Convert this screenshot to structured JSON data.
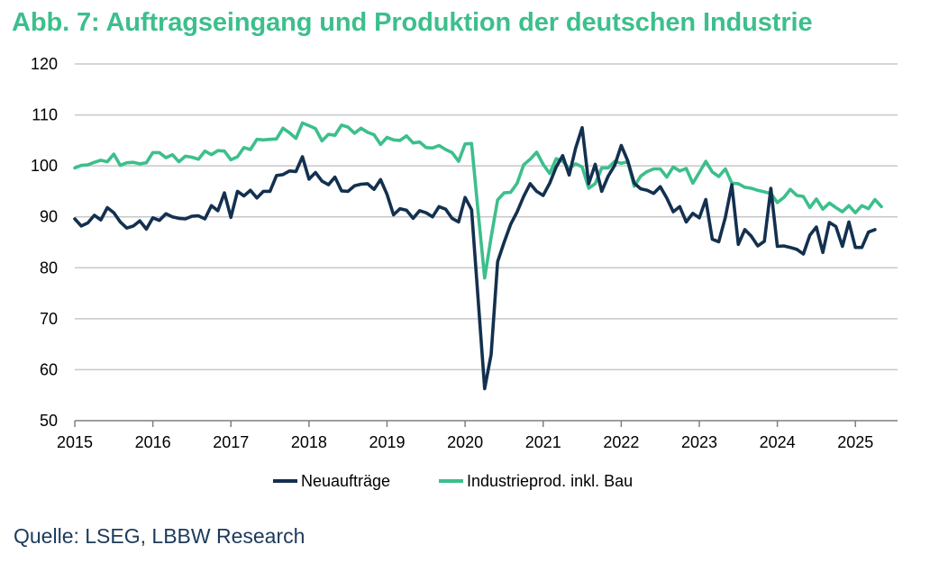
{
  "title": "Abb. 7: Auftragseingang und Produktion der deutschen Industrie",
  "source": "Quelle: LSEG, LBBW Research",
  "colors": {
    "title": "#3cbf8c",
    "series_orders": "#14304f",
    "series_production": "#3cbf8c",
    "grid": "#c8c8c8"
  },
  "chart_data": {
    "type": "line",
    "title": "Abb. 7: Auftragseingang und Produktion der deutschen Industrie",
    "xlabel": "",
    "ylabel": "",
    "ylim": [
      50,
      120
    ],
    "yticks": [
      50,
      60,
      70,
      80,
      90,
      100,
      110,
      120
    ],
    "xlim": [
      2015.0,
      2025.54
    ],
    "xticks": [
      2015,
      2016,
      2017,
      2018,
      2019,
      2020,
      2021,
      2022,
      2023,
      2024,
      2025
    ],
    "x_start": "2015-01",
    "frequency": "monthly",
    "grid": "horizontal",
    "legend_position": "bottom",
    "series": [
      {
        "name": "Neuaufträge",
        "values": [
          89.6,
          88.2,
          88.8,
          90.3,
          89.4,
          91.8,
          90.8,
          89.0,
          87.8,
          88.2,
          89.2,
          87.6,
          89.8,
          89.3,
          90.6,
          90.0,
          89.7,
          89.6,
          90.1,
          90.2,
          89.6,
          92.2,
          91.2,
          94.7,
          89.9,
          95.0,
          94.1,
          95.2,
          93.7,
          95.0,
          95.0,
          98.1,
          98.3,
          99.0,
          98.9,
          101.8,
          97.4,
          98.7,
          97.0,
          96.3,
          97.8,
          95.1,
          95.0,
          96.1,
          96.4,
          96.5,
          95.4,
          97.3,
          94.4,
          90.4,
          91.6,
          91.3,
          89.7,
          91.2,
          90.8,
          90.0,
          92.0,
          91.5,
          89.7,
          89.0,
          93.8,
          91.4,
          74.0,
          56.3,
          63.0,
          81.2,
          85.0,
          88.5,
          91.0,
          94.0,
          96.5,
          95.0,
          94.2,
          96.6,
          99.8,
          102.0,
          98.2,
          103.5,
          107.5,
          96.5,
          100.3,
          95.0,
          98.0,
          100.1,
          104.0,
          101.0,
          96.6,
          95.5,
          95.2,
          94.6,
          95.9,
          93.7,
          91.0,
          92.0,
          89.0,
          90.7,
          89.8,
          93.4,
          85.6,
          85.1,
          89.9,
          96.3,
          84.6,
          87.5,
          86.2,
          84.3,
          85.2,
          95.6,
          84.2,
          84.3,
          84.0,
          83.6,
          82.7,
          86.4,
          88.0,
          83.0,
          88.9,
          88.1,
          84.2,
          89.0,
          84.0,
          84.0,
          87.0,
          87.5
        ]
      },
      {
        "name": "Industrieprod. inkl. Bau",
        "values": [
          99.6,
          100.1,
          100.2,
          100.7,
          101.1,
          100.8,
          102.3,
          100.1,
          100.6,
          100.7,
          100.4,
          100.6,
          102.6,
          102.6,
          101.6,
          102.2,
          100.8,
          101.9,
          101.7,
          101.3,
          102.9,
          102.2,
          103.0,
          102.9,
          101.2,
          101.8,
          103.6,
          103.2,
          105.2,
          105.1,
          105.2,
          105.3,
          107.4,
          106.5,
          105.4,
          108.4,
          107.9,
          107.3,
          104.9,
          106.2,
          106.0,
          108.0,
          107.6,
          106.4,
          107.4,
          106.6,
          106.1,
          104.2,
          105.6,
          105.1,
          105.0,
          105.9,
          104.5,
          104.7,
          103.6,
          103.5,
          104.0,
          103.2,
          102.6,
          100.9,
          104.3,
          104.4,
          91.1,
          78.0,
          86.0,
          93.3,
          94.7,
          94.8,
          96.6,
          100.2,
          101.3,
          102.7,
          100.3,
          98.5,
          101.4,
          100.9,
          99.5,
          100.4,
          99.8,
          95.6,
          96.5,
          99.6,
          99.6,
          100.9,
          100.5,
          100.8,
          96.0,
          98.0,
          98.9,
          99.4,
          99.4,
          97.8,
          99.8,
          99.0,
          99.5,
          96.6,
          98.7,
          100.9,
          98.8,
          97.9,
          99.4,
          96.6,
          96.5,
          95.8,
          95.6,
          95.2,
          94.9,
          94.6,
          92.8,
          93.8,
          95.4,
          94.2,
          94.0,
          91.8,
          93.5,
          91.5,
          92.7,
          91.8,
          91.0,
          92.2,
          90.8,
          92.2,
          91.6,
          93.4,
          92.0
        ]
      }
    ]
  }
}
